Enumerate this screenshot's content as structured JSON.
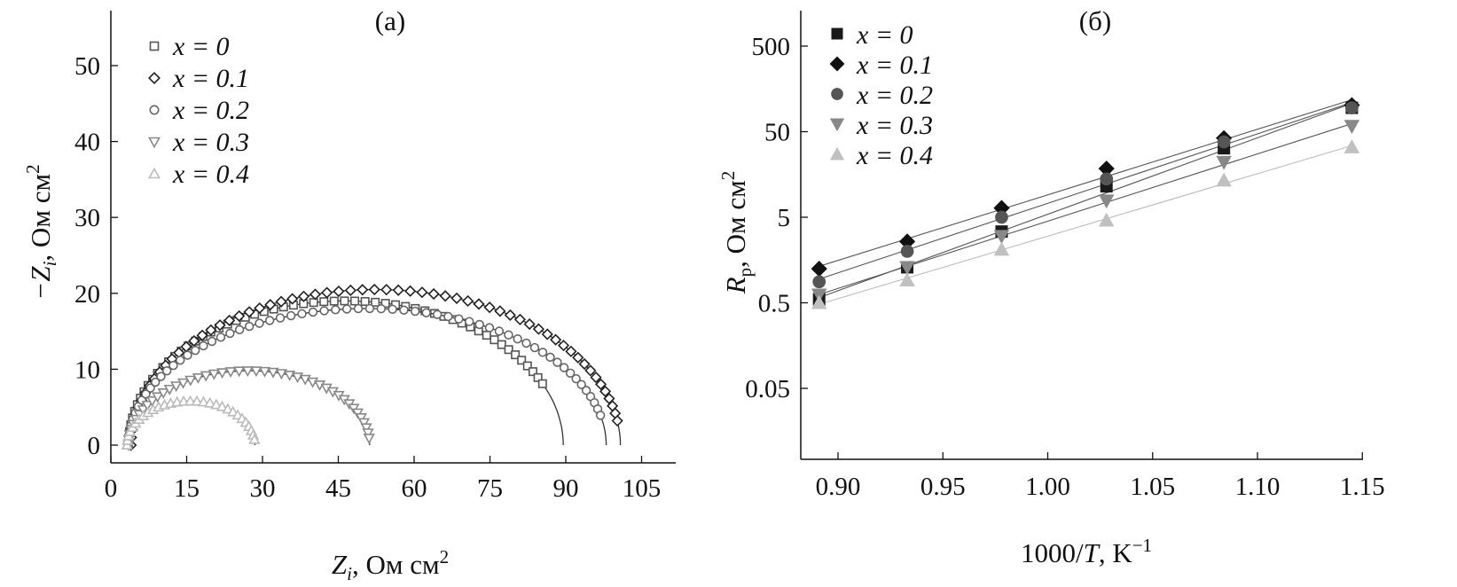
{
  "chart_data": [
    {
      "type": "scatter",
      "title": "(а)",
      "xlabel": "Z_i, Ом см²",
      "xlabel_main": "Z",
      "xlabel_sub": "i",
      "xlabel_unit": ", Ом см",
      "xlabel_sup": "2",
      "ylabel": "−Z_i, Ом см²",
      "ylabel_main": "−Z",
      "ylabel_sub": "i",
      "ylabel_unit": ", Ом см",
      "ylabel_sup": "2",
      "xlim": [
        0,
        115
      ],
      "ylim": [
        -1,
        55
      ],
      "xticks": [
        0,
        15,
        30,
        45,
        60,
        75,
        90,
        105
      ],
      "yticks": [
        0,
        10,
        20,
        30,
        40,
        50
      ],
      "legend_position": "top-left",
      "series": [
        {
          "name": "x = 0",
          "marker": "open-square",
          "color": "#555555",
          "x0": 3.5,
          "x1": 89.5,
          "R": 19.0,
          "tmin": 0.0,
          "tmax": 0.86,
          "n": 58
        },
        {
          "name": "x = 0.1",
          "marker": "open-diamond",
          "color": "#222222",
          "x0": 4.0,
          "x1": 100.8,
          "R": 20.5,
          "tmin": 0.0,
          "tmax": 0.95,
          "n": 62
        },
        {
          "name": "x = 0.2",
          "marker": "open-circle",
          "color": "#666666",
          "x0": 3.5,
          "x1": 98.0,
          "R": 18.0,
          "tmin": 0.0,
          "tmax": 0.93,
          "n": 62
        },
        {
          "name": "x = 0.3",
          "marker": "open-triangle-down",
          "color": "#888888",
          "x0": 3.5,
          "x1": 51.2,
          "R": 9.8,
          "tmin": 0.0,
          "tmax": 0.97,
          "n": 44
        },
        {
          "name": "x = 0.4",
          "marker": "open-triangle-up",
          "color": "#bbbbbb",
          "x0": 3.2,
          "x1": 28.5,
          "R": 5.8,
          "tmin": 0.0,
          "tmax": 0.96,
          "n": 30
        }
      ]
    },
    {
      "type": "scatter",
      "title": "(б)",
      "xlabel": "1000/T, K⁻¹",
      "xlabel_main": "1000/",
      "xlabel_it": "T",
      "xlabel_unit": ", K",
      "xlabel_sup": "−1",
      "ylabel": "R_p, Ом см²",
      "ylabel_main": "R",
      "ylabel_sub": "p",
      "ylabel_unit": ", Ом см",
      "ylabel_sup": "2",
      "yscale": "log",
      "xlim": [
        0.87,
        1.15
      ],
      "ylim": [
        0.01,
        1000
      ],
      "xticks": [
        "0.90",
        "0.95",
        "1.00",
        "1.05",
        "1.10",
        "1.15"
      ],
      "yticks": [
        "0.05",
        "0.5",
        "5",
        "50",
        "500"
      ],
      "legend_position": "top-left",
      "x": [
        0.891,
        0.933,
        0.978,
        1.028,
        1.084,
        1.145
      ],
      "series": [
        {
          "name": "x = 0",
          "marker": "filled-square",
          "color": "#1a1a1a",
          "values": [
            0.55,
            1.3,
            3.4,
            11.5,
            32,
            95
          ]
        },
        {
          "name": "x = 0.1",
          "marker": "filled-diamond",
          "color": "#111111",
          "values": [
            1.25,
            2.6,
            6.4,
            18.5,
            42,
            102
          ]
        },
        {
          "name": "x = 0.2",
          "marker": "filled-circle",
          "color": "#555555",
          "values": [
            0.88,
            2.0,
            5.0,
            14.0,
            38,
            95
          ]
        },
        {
          "name": "x = 0.3",
          "marker": "filled-triangle-down",
          "color": "#888888",
          "values": [
            0.62,
            1.3,
            3.0,
            7.8,
            22,
            58
          ]
        },
        {
          "name": "x = 0.4",
          "marker": "filled-triangle-up",
          "color": "#c0c0c0",
          "values": [
            0.5,
            0.92,
            2.1,
            4.6,
            13.5,
            33
          ]
        }
      ]
    }
  ]
}
